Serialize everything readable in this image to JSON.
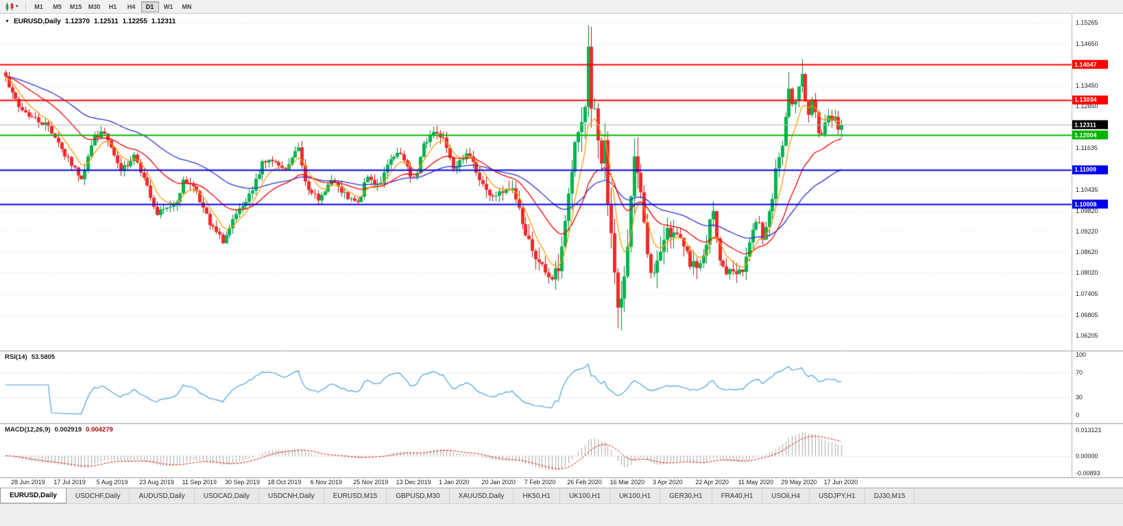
{
  "toolbar": {
    "chart_type_icon": "candlestick-chart-icon",
    "timeframes": [
      {
        "label": "M1",
        "active": false
      },
      {
        "label": "M5",
        "active": false
      },
      {
        "label": "M15",
        "active": false
      },
      {
        "label": "M30",
        "active": false
      },
      {
        "label": "H1",
        "active": false
      },
      {
        "label": "H4",
        "active": false
      },
      {
        "label": "D1",
        "active": true
      },
      {
        "label": "W1",
        "active": false
      },
      {
        "label": "MN",
        "active": false
      }
    ]
  },
  "chart": {
    "title": {
      "symbol": "EURUSD,Daily",
      "open": "1.12370",
      "high": "1.12511",
      "low": "1.12255",
      "close": "1.12311"
    },
    "price_axis_ticks": [
      "1.15265",
      "1.14650",
      "1.13450",
      "1.12850",
      "1.11635",
      "1.10435",
      "1.09820",
      "1.09220",
      "1.08620",
      "1.08020",
      "1.07405",
      "1.06805",
      "1.06205"
    ],
    "price_lines": [
      {
        "label": "1.14047",
        "price": 1.14047,
        "color": "#ff0000",
        "type": "resistance"
      },
      {
        "label": "1.13034",
        "price": 1.13034,
        "color": "#ff0000",
        "type": "resistance"
      },
      {
        "label": "1.12311",
        "price": 1.12311,
        "color": "#000000",
        "type": "current-price"
      },
      {
        "label": "1.12004",
        "price": 1.12004,
        "color": "#00b400",
        "type": "support"
      },
      {
        "label": "1.11009",
        "price": 1.11009,
        "color": "#0000f0",
        "type": "support"
      },
      {
        "label": "1.10008",
        "price": 1.10008,
        "color": "#0000f0",
        "type": "support"
      }
    ],
    "date_labels": [
      "28 Jun 2019",
      "17 Jul 2019",
      "5 Aug 2019",
      "23 Aug 2019",
      "11 Sep 2019",
      "30 Sep 2019",
      "18 Oct 2019",
      "6 Nov 2019",
      "25 Nov 2019",
      "13 Dec 2019",
      "1 Jan 2020",
      "20 Jan 2020",
      "7 Feb 2020",
      "26 Feb 2020",
      "16 Mar 2020",
      "3 Apr 2020",
      "22 Apr 2020",
      "11 May 2020",
      "29 May 2020",
      "17 Jun 2020"
    ]
  },
  "indicators": {
    "rsi": {
      "name": "RSI(14)",
      "value": "53.5805",
      "axis_ticks": [
        "100",
        "70",
        "30",
        "0"
      ],
      "levels": [
        70,
        30
      ],
      "color": "#4aa0e0"
    },
    "macd": {
      "name": "MACD(12,26,9)",
      "value_main": "0.002919",
      "value_signal": "0.004279",
      "axis_ticks": [
        "0.013121",
        "0.00000",
        "-0.00893"
      ],
      "axis_max": 0.013121,
      "axis_min": -0.00893,
      "hist_color": "#a8a8a8",
      "signal_color": "#dd0000"
    }
  },
  "tabs": [
    {
      "label": "EURUSD,Daily",
      "active": true
    },
    {
      "label": "USDCHF,Daily",
      "active": false
    },
    {
      "label": "AUDUSD,Daily",
      "active": false
    },
    {
      "label": "USDCAD,Daily",
      "active": false
    },
    {
      "label": "USDCNH,Daily",
      "active": false
    },
    {
      "label": "EURUSD,M15",
      "active": false
    },
    {
      "label": "GBPUSD,M30",
      "active": false
    },
    {
      "label": "XAUUSD,Daily",
      "active": false
    },
    {
      "label": "HK50,H1",
      "active": false
    },
    {
      "label": "UK100,H1",
      "active": false
    },
    {
      "label": "UK100,H1",
      "active": false
    },
    {
      "label": "GER30,H1",
      "active": false
    },
    {
      "label": "FRA40,H1",
      "active": false
    },
    {
      "label": "USOil,H4",
      "active": false
    },
    {
      "label": "USDJPY,H1",
      "active": false
    },
    {
      "label": "DJ30,M15",
      "active": false
    }
  ],
  "colors": {
    "up_fill": "#00b44e",
    "up_border": "#00843a",
    "down_fill": "#f32a2a",
    "down_border": "#bb1414",
    "ma_fast": "#ff9c00",
    "ma_mid": "#e80000",
    "ma_slow": "#2f2fd0",
    "grid": "#e3e3e3",
    "separator": "#9a9a9a",
    "axis_border": "#b4b4b4",
    "current_price_line": "#b0b0b0",
    "toolbar_bg": "#f1f1f1",
    "tabbar_bg": "#e8e8e8"
  },
  "chart_data": {
    "type": "candlestick",
    "symbol": "EURUSD",
    "timeframe": "Daily",
    "bars": 255,
    "visible_price_range": [
      1.0577,
      1.1552
    ],
    "seed": 7,
    "anchors": [
      [
        0,
        1.1373
      ],
      [
        2,
        1.1322
      ],
      [
        4,
        1.1282
      ],
      [
        8,
        1.1253
      ],
      [
        13,
        1.1227
      ],
      [
        16,
        1.118
      ],
      [
        18,
        1.114
      ],
      [
        21,
        1.1105
      ],
      [
        23,
        1.1075
      ],
      [
        25,
        1.114
      ],
      [
        27,
        1.12
      ],
      [
        30,
        1.1205
      ],
      [
        33,
        1.114
      ],
      [
        35,
        1.1095
      ],
      [
        39,
        1.1145
      ],
      [
        42,
        1.108
      ],
      [
        44,
        1.102
      ],
      [
        46,
        1.097
      ],
      [
        49,
        1.099
      ],
      [
        52,
        1.101
      ],
      [
        54,
        1.107
      ],
      [
        56,
        1.106
      ],
      [
        58,
        1.104
      ],
      [
        60,
        1.099
      ],
      [
        62,
        1.094
      ],
      [
        64,
        1.092
      ],
      [
        66,
        1.089
      ],
      [
        68,
        1.093
      ],
      [
        70,
        1.097
      ],
      [
        73,
        1.1005
      ],
      [
        75,
        1.104
      ],
      [
        78,
        1.1125
      ],
      [
        81,
        1.1125
      ],
      [
        83,
        1.111
      ],
      [
        85,
        1.11
      ],
      [
        87,
        1.1135
      ],
      [
        89,
        1.1165
      ],
      [
        91,
        1.1068
      ],
      [
        93,
        1.1035
      ],
      [
        95,
        1.101
      ],
      [
        97,
        1.104
      ],
      [
        99,
        1.107
      ],
      [
        101,
        1.105
      ],
      [
        104,
        1.1015
      ],
      [
        107,
        1.1005
      ],
      [
        110,
        1.108
      ],
      [
        112,
        1.106
      ],
      [
        114,
        1.1065
      ],
      [
        117,
        1.113
      ],
      [
        120,
        1.1145
      ],
      [
        123,
        1.108
      ],
      [
        125,
        1.109
      ],
      [
        127,
        1.1175
      ],
      [
        130,
        1.121
      ],
      [
        133,
        1.1195
      ],
      [
        136,
        1.1105
      ],
      [
        138,
        1.113
      ],
      [
        140,
        1.115
      ],
      [
        143,
        1.1095
      ],
      [
        145,
        1.106
      ],
      [
        147,
        1.1025
      ],
      [
        151,
        1.1032
      ],
      [
        154,
        1.1045
      ],
      [
        156,
        1.099
      ],
      [
        158,
        1.091
      ],
      [
        160,
        1.087
      ],
      [
        162,
        1.083
      ],
      [
        164,
        1.08
      ],
      [
        166,
        1.0785
      ],
      [
        168,
        1.081
      ],
      [
        169,
        1.088
      ],
      [
        171,
        1.1027
      ],
      [
        173,
        1.1173
      ],
      [
        175,
        1.124
      ],
      [
        176,
        1.1285
      ],
      [
        177,
        1.1456
      ],
      [
        178,
        1.1281
      ],
      [
        179,
        1.1271
      ],
      [
        180,
        1.1184
      ],
      [
        181,
        1.111
      ],
      [
        182,
        1.118
      ],
      [
        183,
        1.1
      ],
      [
        184,
        1.0918
      ],
      [
        185,
        1.08
      ],
      [
        186,
        1.0694
      ],
      [
        187,
        1.0727
      ],
      [
        188,
        1.0789
      ],
      [
        189,
        1.0883
      ],
      [
        190,
        1.102
      ],
      [
        191,
        1.1141
      ],
      [
        192,
        1.109
      ],
      [
        193,
        1.103
      ],
      [
        194,
        1.095
      ],
      [
        195,
        1.0859
      ],
      [
        196,
        1.0808
      ],
      [
        197,
        1.08
      ],
      [
        198,
        1.0835
      ],
      [
        199,
        1.0857
      ],
      [
        200,
        1.09
      ],
      [
        201,
        1.0935
      ],
      [
        202,
        1.091
      ],
      [
        204,
        1.091
      ],
      [
        206,
        1.0875
      ],
      [
        208,
        1.0822
      ],
      [
        210,
        1.0818
      ],
      [
        211,
        1.083
      ],
      [
        213,
        1.0882
      ],
      [
        214,
        1.0955
      ],
      [
        215,
        1.098
      ],
      [
        216,
        1.09
      ],
      [
        217,
        1.0837
      ],
      [
        219,
        1.08
      ],
      [
        221,
        1.0807
      ],
      [
        223,
        1.081
      ],
      [
        224,
        1.0805
      ],
      [
        226,
        1.089
      ],
      [
        227,
        1.0924
      ],
      [
        229,
        1.095
      ],
      [
        230,
        1.0901
      ],
      [
        232,
        1.098
      ],
      [
        233,
        1.1017
      ],
      [
        234,
        1.1101
      ],
      [
        235,
        1.1134
      ],
      [
        236,
        1.117
      ],
      [
        237,
        1.125
      ],
      [
        238,
        1.1337
      ],
      [
        239,
        1.129
      ],
      [
        240,
        1.1295
      ],
      [
        241,
        1.134
      ],
      [
        242,
        1.1375
      ],
      [
        243,
        1.13
      ],
      [
        244,
        1.1256
      ],
      [
        245,
        1.13
      ],
      [
        246,
        1.1264
      ],
      [
        247,
        1.121
      ],
      [
        248,
        1.1206
      ],
      [
        249,
        1.1235
      ],
      [
        250,
        1.126
      ],
      [
        251,
        1.1246
      ],
      [
        252,
        1.1251
      ],
      [
        253,
        1.1218
      ],
      [
        254,
        1.12311
      ]
    ],
    "spikes": [
      [
        0,
        "h",
        1.139
      ],
      [
        177,
        "h",
        1.1495
      ],
      [
        185,
        "l",
        1.077
      ],
      [
        186,
        "l",
        1.0655
      ],
      [
        187,
        "l",
        1.0636
      ],
      [
        238,
        "h",
        1.1384
      ],
      [
        242,
        "h",
        1.1422
      ]
    ],
    "volatility": [
      [
        0,
        0.0035
      ],
      [
        140,
        0.0035
      ],
      [
        155,
        0.0055
      ],
      [
        168,
        0.008
      ],
      [
        177,
        0.012
      ],
      [
        190,
        0.011
      ],
      [
        200,
        0.008
      ],
      [
        212,
        0.0055
      ],
      [
        228,
        0.0048
      ],
      [
        240,
        0.006
      ],
      [
        254,
        0.0042
      ]
    ],
    "moving_averages": [
      {
        "period": 7,
        "type": "ema",
        "color": "#ff9c00",
        "name": "fast-ma"
      },
      {
        "period": 24,
        "type": "ema",
        "color": "#e80000",
        "name": "mid-ma"
      },
      {
        "period": 52,
        "type": "ema",
        "color": "#2f2fd0",
        "name": "slow-ma"
      }
    ],
    "rsi_period": 14,
    "macd_params": [
      12,
      26,
      9
    ]
  }
}
